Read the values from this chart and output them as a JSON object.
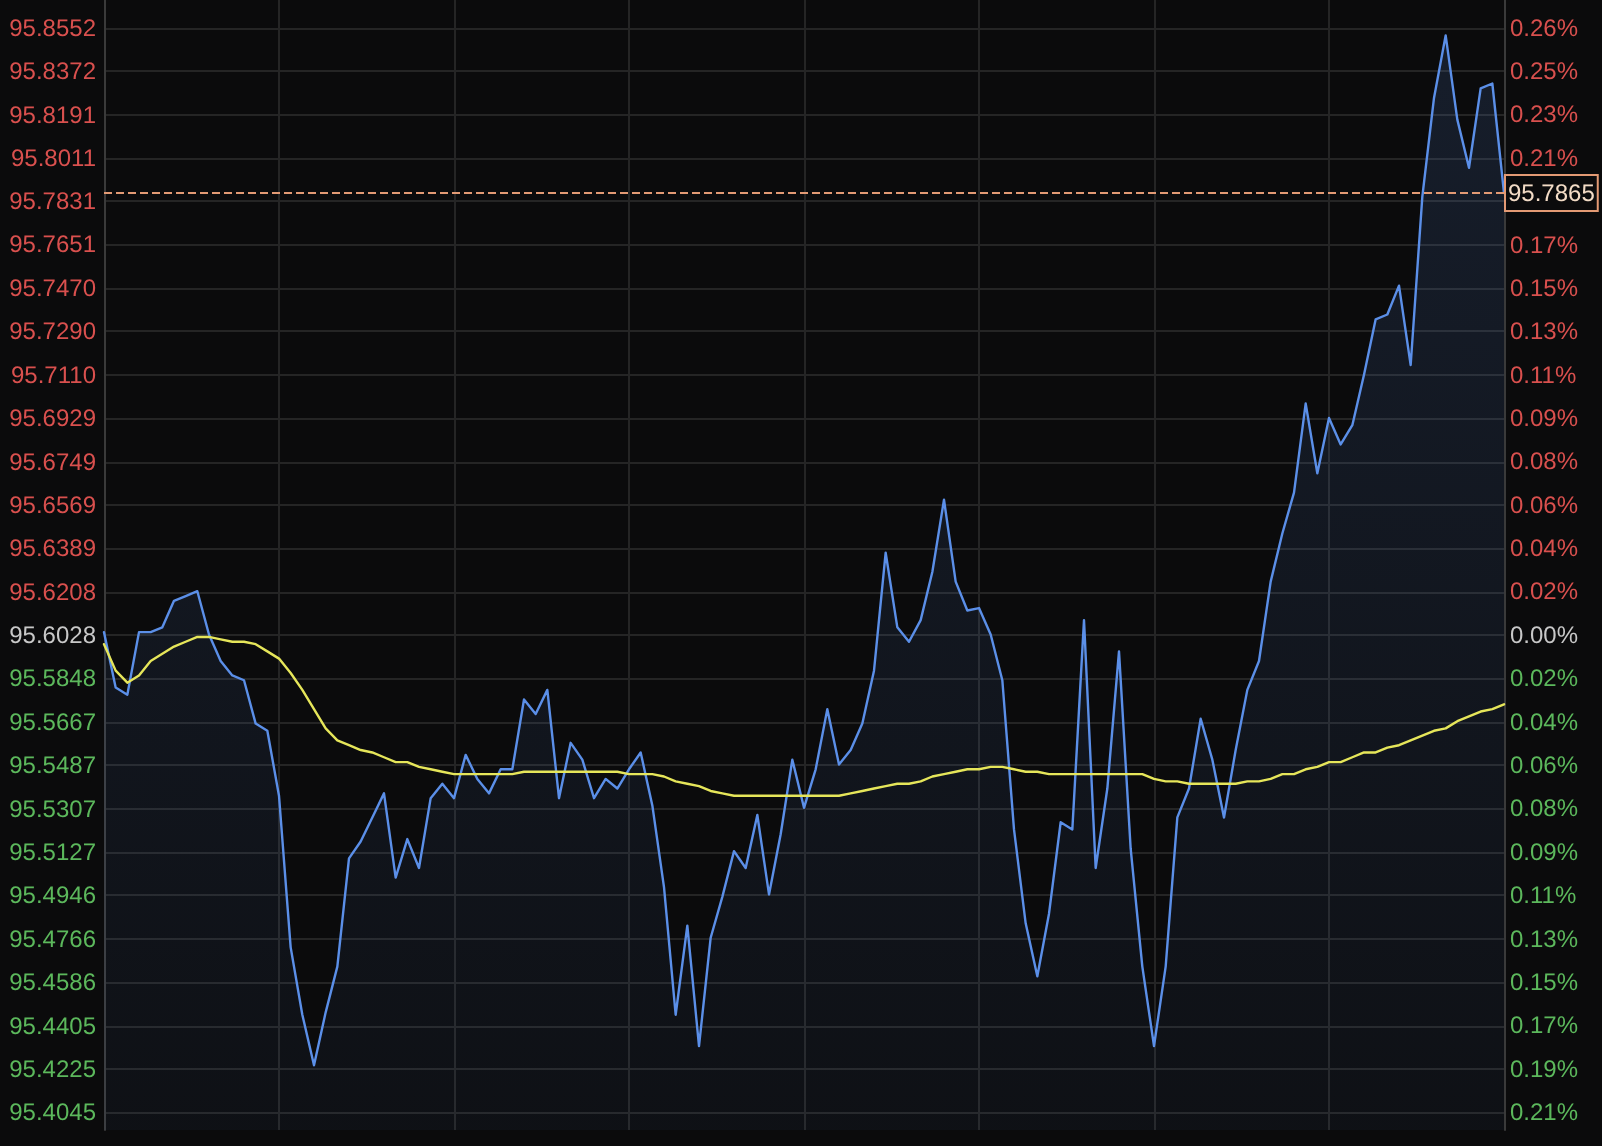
{
  "chart_data": {
    "type": "area",
    "categories": [
      null,
      null,
      null,
      null,
      null,
      null,
      null,
      null,
      null,
      null,
      null,
      null,
      null,
      null,
      null,
      null,
      null,
      null,
      null,
      null,
      null,
      null,
      null,
      null,
      null,
      null,
      null,
      null,
      null,
      null,
      null,
      null,
      null,
      null,
      null,
      null,
      null,
      null,
      null,
      null,
      null,
      null,
      null,
      null,
      null,
      null,
      null,
      null,
      null,
      null,
      null,
      null,
      null,
      null,
      null,
      null,
      null,
      null,
      null,
      null,
      null,
      null,
      null,
      null,
      null,
      null,
      null,
      null,
      null,
      null,
      null,
      null,
      null,
      null,
      null,
      null,
      null,
      null,
      null,
      null,
      null,
      null,
      null,
      null,
      null,
      null,
      null,
      null,
      null,
      null,
      null,
      null,
      null,
      null,
      null,
      null,
      null,
      null,
      null,
      null,
      null,
      null,
      null,
      null,
      null,
      null,
      null,
      null,
      null,
      null,
      null,
      null,
      null,
      null,
      null,
      null,
      null,
      null,
      null,
      null,
      null
    ],
    "series": [
      {
        "color": "#5b8fe8",
        "values": [
          95.604,
          95.581,
          95.578,
          95.604,
          95.604,
          95.606,
          95.617,
          95.619,
          95.621,
          95.603,
          95.592,
          95.586,
          95.584,
          95.566,
          95.563,
          95.536,
          95.473,
          95.445,
          95.424,
          95.446,
          95.465,
          95.51,
          95.517,
          95.527,
          95.537,
          95.502,
          95.518,
          95.506,
          95.535,
          95.541,
          95.535,
          95.553,
          95.543,
          95.537,
          95.547,
          95.547,
          95.576,
          95.57,
          95.58,
          95.535,
          95.558,
          95.551,
          95.535,
          95.543,
          95.539,
          95.547,
          95.554,
          95.532,
          95.498,
          95.445,
          95.482,
          95.432,
          95.477,
          95.494,
          95.513,
          95.506,
          95.528,
          95.495,
          95.52,
          95.551,
          95.531,
          95.547,
          95.572,
          95.549,
          95.555,
          95.566,
          95.588,
          95.637,
          95.606,
          95.6,
          95.609,
          95.629,
          95.659,
          95.625,
          95.613,
          95.614,
          95.603,
          95.584,
          95.522,
          95.483,
          95.461,
          95.487,
          95.525,
          95.522,
          95.609,
          95.506,
          95.539,
          95.596,
          95.514,
          95.465,
          95.432,
          95.465,
          95.527,
          95.539,
          95.568,
          95.551,
          95.527,
          95.555,
          95.58,
          95.592,
          95.625,
          95.645,
          95.662,
          95.699,
          95.67,
          95.693,
          95.682,
          95.69,
          95.711,
          95.734,
          95.736,
          95.748,
          95.715,
          95.785,
          95.826,
          95.852,
          95.817,
          95.797,
          95.83,
          95.832,
          95.7865
        ]
      },
      {
        "type": "line",
        "color": "#e6e65a",
        "values": [
          95.599,
          95.588,
          95.583,
          95.586,
          95.592,
          95.595,
          95.598,
          95.6,
          95.602,
          95.602,
          95.601,
          95.6,
          95.6,
          95.599,
          95.596,
          95.593,
          95.587,
          95.58,
          95.572,
          95.564,
          95.559,
          95.557,
          95.555,
          95.554,
          95.552,
          95.55,
          95.55,
          95.548,
          95.547,
          95.546,
          95.545,
          95.545,
          95.545,
          95.545,
          95.545,
          95.545,
          95.546,
          95.546,
          95.546,
          95.546,
          95.546,
          95.546,
          95.546,
          95.546,
          95.546,
          95.545,
          95.545,
          95.545,
          95.544,
          95.542,
          95.541,
          95.54,
          95.538,
          95.537,
          95.536,
          95.536,
          95.536,
          95.536,
          95.536,
          95.536,
          95.536,
          95.536,
          95.536,
          95.536,
          95.537,
          95.538,
          95.539,
          95.54,
          95.541,
          95.541,
          95.542,
          95.544,
          95.545,
          95.546,
          95.547,
          95.547,
          95.548,
          95.548,
          95.547,
          95.546,
          95.546,
          95.545,
          95.545,
          95.545,
          95.545,
          95.545,
          95.545,
          95.545,
          95.545,
          95.545,
          95.543,
          95.542,
          95.542,
          95.541,
          95.541,
          95.541,
          95.541,
          95.541,
          95.542,
          95.542,
          95.543,
          95.545,
          95.545,
          95.547,
          95.548,
          95.55,
          95.55,
          95.552,
          95.554,
          95.554,
          95.556,
          95.557,
          95.559,
          95.561,
          95.563,
          95.564,
          95.567,
          95.569,
          95.571,
          95.572,
          95.574
        ]
      }
    ],
    "ylim": [
      95.3971,
      95.8667
    ],
    "yticks": [
      95.4045,
      95.4225,
      95.4405,
      95.4586,
      95.4766,
      95.4946,
      95.5127,
      95.5307,
      95.5487,
      95.5667,
      95.5848,
      95.6028,
      95.6208,
      95.6389,
      95.6569,
      95.6749,
      95.6929,
      {
        "value": 95.711,
        "label": "95.7110"
      },
      {
        "value": 95.729,
        "label": "95.7290"
      },
      {
        "value": 95.747,
        "label": "95.7470"
      },
      95.7651,
      95.7831,
      95.8011,
      95.8191,
      95.8372,
      95.8552
    ],
    "y2lim": [
      -0.2152,
      0.276
    ],
    "y2ticks": [
      {
        "value": -0.2074,
        "label": "0.21%"
      },
      {
        "value": -0.1886,
        "label": "0.19%"
      },
      {
        "value": -0.1697,
        "label": "0.17%"
      },
      {
        "value": -0.1509,
        "label": "0.15%"
      },
      {
        "value": -0.132,
        "label": "0.13%"
      },
      {
        "value": -0.1131,
        "label": "0.11%"
      },
      {
        "value": -0.0943,
        "label": "0.09%"
      },
      {
        "value": -0.0754,
        "label": "0.08%"
      },
      {
        "value": -0.0566,
        "label": "0.06%"
      },
      {
        "value": -0.0377,
        "label": "0.04%"
      },
      {
        "value": -0.0189,
        "label": "0.02%"
      },
      {
        "value": 0,
        "label": "0.00%"
      },
      {
        "value": 0.0189,
        "label": "0.02%"
      },
      {
        "value": 0.0377,
        "label": "0.04%"
      },
      {
        "value": 0.0566,
        "label": "0.06%"
      },
      {
        "value": 0.0754,
        "label": "0.08%"
      },
      {
        "value": 0.0943,
        "label": "0.09%"
      },
      {
        "value": 0.1131,
        "label": "0.11%"
      },
      {
        "value": 0.132,
        "label": "0.13%"
      },
      {
        "value": 0.1509,
        "label": "0.15%"
      },
      {
        "value": 0.1697,
        "label": "0.17%"
      },
      {
        "value": 0.1886,
        "label": null
      },
      {
        "value": 0.2074,
        "label": "0.21%"
      },
      {
        "value": 0.2263,
        "label": "0.23%"
      },
      {
        "value": 0.2451,
        "label": "0.25%"
      },
      {
        "value": 0.264,
        "label": "0.26%"
      }
    ],
    "ref_lines": [
      {
        "axis": "y",
        "value": 95.7865,
        "label": "95.7865",
        "color": "#e39a74",
        "line_style": "dashed"
      }
    ],
    "grid": true,
    "marker": "none"
  }
}
